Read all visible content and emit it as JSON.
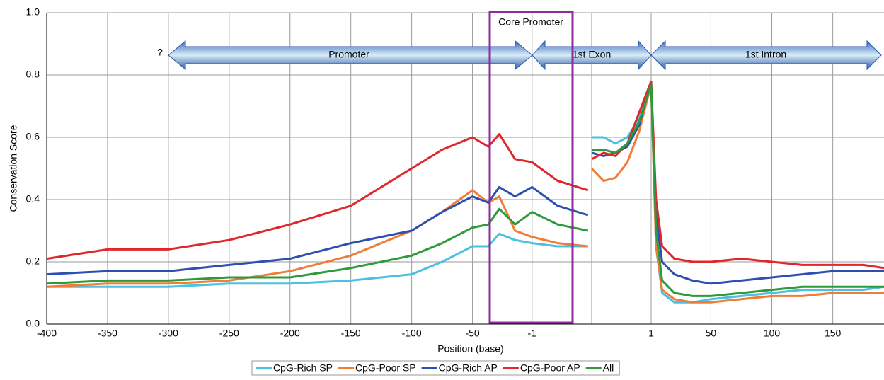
{
  "chart_data": [
    {
      "type": "line",
      "y_label": "Conservation Score",
      "x_label": "Position (base)",
      "annotations": [
        "Core Promoter",
        "?",
        "Promoter",
        "1st Exon",
        "1st Intron"
      ],
      "ylim": [
        0,
        1
      ],
      "yticks": [
        {
          "value": 0,
          "label": "0.0"
        },
        0.2,
        0.4,
        0.6,
        0.8,
        {
          "value": 1,
          "label": "1.0"
        }
      ],
      "xlim": [
        -400,
        48
      ],
      "xticks": [
        -400,
        -350,
        -300,
        -250,
        -200,
        -150,
        -100,
        -50,
        -1
      ],
      "grid": true,
      "x": [
        -400,
        -350,
        -300,
        -250,
        -200,
        -150,
        -100,
        -75,
        -50,
        -37,
        -28,
        -15,
        -1,
        20,
        45
      ],
      "series": [
        {
          "name": "CpG-Rich SP",
          "color": "#4bc0e0",
          "values": [
            0.12,
            0.12,
            0.12,
            0.13,
            0.13,
            0.14,
            0.16,
            0.2,
            0.25,
            0.25,
            0.29,
            0.27,
            0.26,
            0.25,
            0.25
          ]
        },
        {
          "name": "CpG-Poor SP",
          "color": "#f07c3a",
          "values": [
            0.12,
            0.13,
            0.13,
            0.14,
            0.17,
            0.22,
            0.3,
            0.36,
            0.43,
            0.39,
            0.41,
            0.3,
            0.28,
            0.26,
            0.25
          ]
        },
        {
          "name": "CpG-Rich AP",
          "color": "#2f4fb0",
          "values": [
            0.16,
            0.17,
            0.17,
            0.19,
            0.21,
            0.26,
            0.3,
            0.36,
            0.41,
            0.39,
            0.44,
            0.41,
            0.44,
            0.38,
            0.35
          ]
        },
        {
          "name": "CpG-Poor AP",
          "color": "#e0282c",
          "values": [
            0.21,
            0.24,
            0.24,
            0.27,
            0.32,
            0.38,
            0.5,
            0.56,
            0.6,
            0.57,
            0.61,
            0.53,
            0.52,
            0.46,
            0.43
          ]
        },
        {
          "name": "All",
          "color": "#2e9a3c",
          "values": [
            0.13,
            0.14,
            0.14,
            0.15,
            0.15,
            0.18,
            0.22,
            0.26,
            0.31,
            0.32,
            0.37,
            0.32,
            0.36,
            0.32,
            0.3
          ]
        }
      ]
    },
    {
      "type": "line",
      "series": [
        {
          "color": "#4bc0e0",
          "values": [
            0.6,
            0.6,
            0.58,
            0.6,
            0.66,
            0.77
          ]
        },
        {
          "color": "#f07c3a",
          "values": [
            0.5,
            0.46,
            0.47,
            0.52,
            0.62,
            0.77
          ]
        },
        {
          "color": "#2f4fb0",
          "values": [
            0.55,
            0.54,
            0.55,
            0.57,
            0.64,
            0.78
          ]
        },
        {
          "color": "#e0282c",
          "values": [
            0.53,
            0.55,
            0.54,
            0.58,
            0.68,
            0.78
          ]
        },
        {
          "color": "#2e9a3c",
          "values": [
            0.56,
            0.56,
            0.55,
            0.58,
            0.65,
            0.77
          ]
        }
      ]
    },
    {
      "type": "line",
      "xlim": [
        1,
        192
      ],
      "xticks": [
        1,
        50,
        100,
        150
      ],
      "x": [
        1,
        5,
        10,
        20,
        35,
        50,
        75,
        100,
        125,
        150,
        175,
        192
      ],
      "series": [
        {
          "color": "#4bc0e0",
          "values": [
            0.77,
            0.25,
            0.1,
            0.07,
            0.07,
            0.08,
            0.09,
            0.1,
            0.11,
            0.11,
            0.11,
            0.12
          ]
        },
        {
          "color": "#f07c3a",
          "values": [
            0.77,
            0.25,
            0.11,
            0.08,
            0.07,
            0.07,
            0.08,
            0.09,
            0.09,
            0.1,
            0.1,
            0.1
          ]
        },
        {
          "color": "#2f4fb0",
          "values": [
            0.77,
            0.35,
            0.2,
            0.16,
            0.14,
            0.13,
            0.14,
            0.15,
            0.16,
            0.17,
            0.17,
            0.17
          ]
        },
        {
          "color": "#e0282c",
          "values": [
            0.78,
            0.4,
            0.25,
            0.21,
            0.2,
            0.2,
            0.21,
            0.2,
            0.19,
            0.19,
            0.19,
            0.18
          ]
        },
        {
          "color": "#2e9a3c",
          "values": [
            0.77,
            0.3,
            0.14,
            0.1,
            0.09,
            0.09,
            0.1,
            0.11,
            0.12,
            0.12,
            0.12,
            0.12
          ]
        }
      ]
    }
  ]
}
